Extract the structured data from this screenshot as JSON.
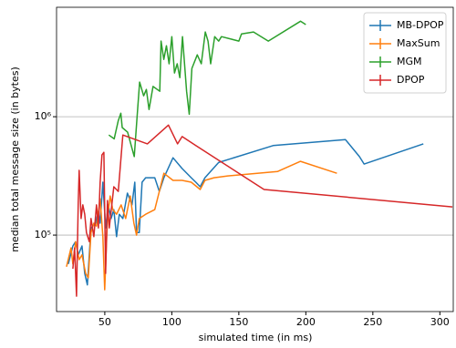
{
  "chart_data": {
    "type": "line",
    "xlabel": "simulated time (in ms)",
    "ylabel": "median total message size (in bytes)",
    "xlim": [
      14,
      310
    ],
    "xticks": [
      50,
      100,
      150,
      200,
      250,
      300
    ],
    "ylim": [
      22600,
      8400000
    ],
    "yscale": "log",
    "yticks": [
      {
        "value": 100000,
        "label": "10⁵"
      },
      {
        "value": 1000000,
        "label": "10⁶"
      }
    ],
    "grid": "y",
    "legend": "upper right",
    "series": [
      {
        "name": "MB-DPOP",
        "color": "#1f77b4",
        "x": [
          22.8,
          26.2,
          28.2,
          30.2,
          33,
          35,
          37,
          39.7,
          43.1,
          45.2,
          46.5,
          48.6,
          50.6,
          52.6,
          54.7,
          56.7,
          58.8,
          60.8,
          63.5,
          66.9,
          70.3,
          72.4,
          73.7,
          75.7,
          77.8,
          80.5,
          87.3,
          90.7,
          94.1,
          100.9,
          107.7,
          114.5,
          117.9,
          121.2,
          124.7,
          134.9,
          175.6,
          229.6,
          240,
          243.5,
          287.7
        ],
        "values": [
          57000,
          81000,
          88000,
          68000,
          81000,
          47500,
          38000,
          115000,
          126000,
          158000,
          126000,
          280000,
          115000,
          180000,
          138000,
          164000,
          97000,
          150000,
          138000,
          226000,
          180000,
          280000,
          105000,
          105000,
          280000,
          305000,
          305000,
          234000,
          305000,
          450000,
          365000,
          305000,
          280000,
          256000,
          305000,
          410000,
          570000,
          640000,
          460000,
          398000,
          590000
        ]
      },
      {
        "name": "MaxSum",
        "color": "#ff7f0e",
        "x": [
          21.4,
          24.8,
          26.2,
          28.2,
          30.9,
          33,
          35.7,
          37.7,
          39.7,
          41.8,
          43.8,
          46.5,
          48.6,
          49.9,
          52,
          54,
          56,
          58.8,
          62.2,
          65.6,
          69,
          71.7,
          73.7,
          75.7,
          80.5,
          87.3,
          94.1,
          100.9,
          107.7,
          114.5,
          121.2,
          124.7,
          131.5,
          141.7,
          179,
          196,
          223.2
        ],
        "values": [
          54000,
          78000,
          57000,
          88000,
          62000,
          68000,
          47500,
          43500,
          105000,
          126000,
          119000,
          203000,
          97000,
          34500,
          138000,
          214000,
          164000,
          150000,
          180000,
          138000,
          214000,
          126000,
          100000,
          138000,
          150000,
          164000,
          333000,
          290000,
          290000,
          280000,
          243000,
          290000,
          305000,
          316000,
          345000,
          420000,
          333000
        ]
      },
      {
        "name": "MGM",
        "color": "#2ca02c",
        "x": [
          53,
          57,
          60,
          62,
          63,
          67,
          72,
          74,
          76,
          79,
          81,
          83,
          86,
          91,
          92,
          94,
          96,
          98,
          100,
          102,
          104,
          106,
          108,
          111,
          113,
          115,
          119,
          122,
          125,
          127,
          129,
          132,
          135,
          137,
          150,
          152,
          161,
          172,
          196,
          200
        ],
        "values": [
          700000,
          650000,
          920000,
          1070000,
          810000,
          740000,
          460000,
          970000,
          1960000,
          1500000,
          1700000,
          1150000,
          1800000,
          1640000,
          4350000,
          3050000,
          3980000,
          2800000,
          4750000,
          2340000,
          2800000,
          2140000,
          4750000,
          1640000,
          1050000,
          2560000,
          3330000,
          2800000,
          5200000,
          4350000,
          2800000,
          4750000,
          4350000,
          4750000,
          4350000,
          5000000,
          5200000,
          4350000,
          6400000,
          6000000
        ]
      },
      {
        "name": "DPOP",
        "color": "#d62728",
        "x": [
          26.2,
          27.5,
          28.9,
          30.2,
          30.9,
          32.3,
          33.6,
          35,
          36.3,
          38.4,
          39.7,
          41.8,
          43.8,
          45.2,
          46.5,
          47.9,
          49.3,
          50.6,
          52,
          53.3,
          56.7,
          60.1,
          63.5,
          81.8,
          97.5,
          104.3,
          107.7,
          117.9,
          168.8,
          309.4
        ],
        "values": [
          52000,
          78000,
          30500,
          189000,
          352000,
          138000,
          180000,
          150000,
          105000,
          88000,
          138000,
          97000,
          180000,
          115000,
          280000,
          475000,
          500000,
          47500,
          196000,
          115000,
          256000,
          234000,
          700000,
          590000,
          850000,
          590000,
          680000,
          570000,
          243000,
          173000
        ]
      }
    ]
  }
}
